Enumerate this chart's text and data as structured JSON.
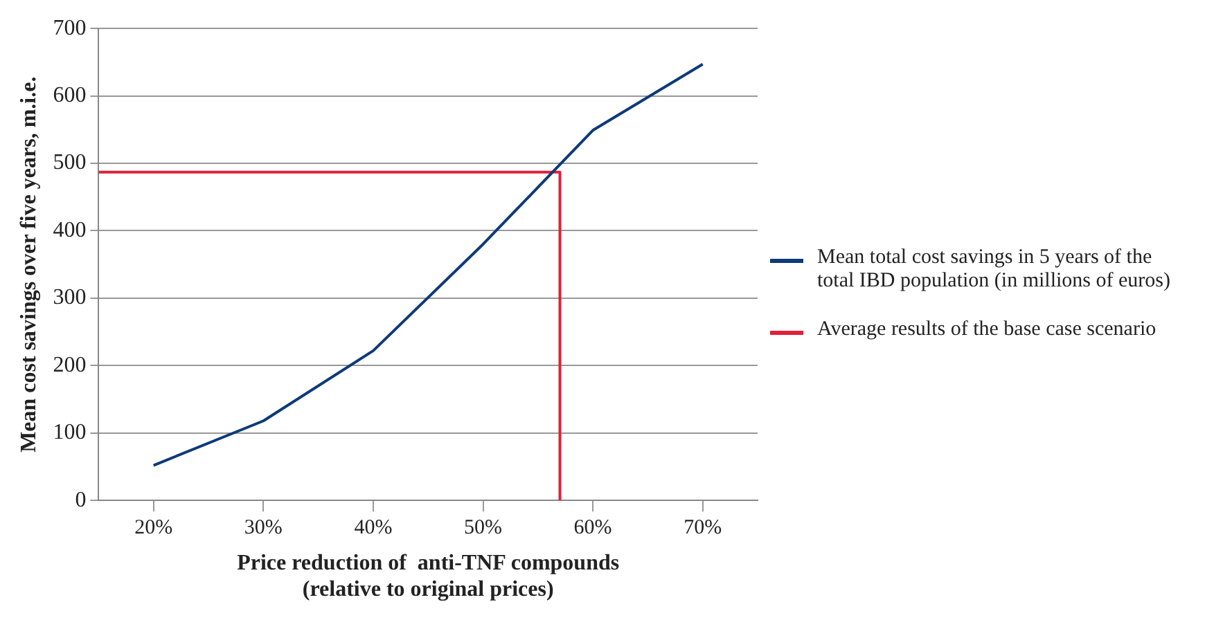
{
  "chart_data": {
    "type": "line",
    "xlabel": "Price reduction of  anti-TNF compounds\n(relative to original prices)",
    "ylabel": "Mean cost savings over five years, m.i.e.",
    "xlim": [
      15,
      75
    ],
    "xticks": [
      {
        "value": 20,
        "label": "20%"
      },
      {
        "value": 30,
        "label": "30%"
      },
      {
        "value": 40,
        "label": "40%"
      },
      {
        "value": 50,
        "label": "50%"
      },
      {
        "value": 60,
        "label": "60%"
      },
      {
        "value": 70,
        "label": "70%"
      }
    ],
    "ylim": [
      0,
      700
    ],
    "yticks": [
      0,
      100,
      200,
      300,
      400,
      500,
      600,
      700
    ],
    "series": [
      {
        "name": "Mean total cost savings in 5 years of the total IBD population (in millions of euros)",
        "color": "#0d3a7a",
        "x": [
          20,
          30,
          40,
          50,
          60,
          70
        ],
        "values": [
          52,
          118,
          222,
          380,
          549,
          647
        ]
      },
      {
        "name": "Average results of the base case scenario",
        "color": "#e0203a",
        "x": [
          15,
          57,
          57
        ],
        "values": [
          487,
          487,
          0
        ]
      }
    ],
    "grid": "y",
    "legend": "right",
    "marker": "none",
    "line_style": "solid"
  }
}
